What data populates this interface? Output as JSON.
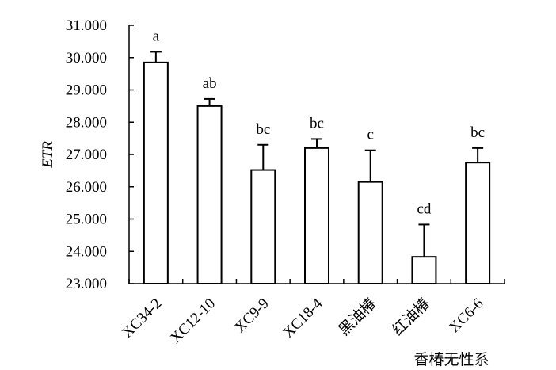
{
  "chart_data": {
    "type": "bar",
    "title": "",
    "xlabel": "香椿无性系",
    "ylabel": "ETR",
    "ylim": [
      23.0,
      31.0
    ],
    "yticks": [
      "23.000",
      "24.000",
      "25.000",
      "26.000",
      "27.000",
      "28.000",
      "29.000",
      "30.000",
      "31.000"
    ],
    "categories": [
      "XC34-2",
      "XC12-10",
      "XC9-9",
      "XC18-4",
      "黑油椿",
      "红油椿",
      "XC6-6"
    ],
    "values": [
      29.85,
      28.5,
      26.52,
      27.2,
      26.15,
      23.83,
      26.75
    ],
    "errors": [
      0.33,
      0.22,
      0.78,
      0.28,
      0.98,
      1.0,
      0.45
    ],
    "significance": [
      "a",
      "ab",
      "bc",
      "bc",
      "c",
      "cd",
      "bc"
    ],
    "grid": false,
    "legend": "none",
    "bar_fill": "#ffffff",
    "stroke_color": "#000000"
  }
}
